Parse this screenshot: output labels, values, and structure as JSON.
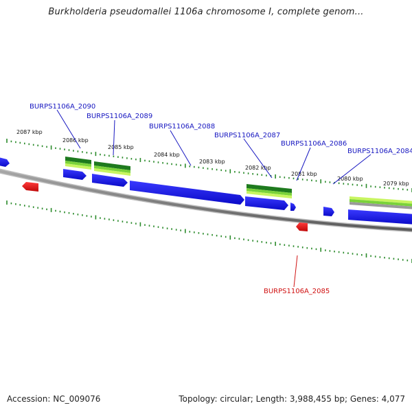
{
  "title": "Burkholderia pseudomallei 1106a chromosome I, complete genom...",
  "footer": {
    "accession": "Accession: NC_009076",
    "summary": "Topology: circular; Length: 3,988,455 bp; Genes: 4,077"
  },
  "colors": {
    "forward_gene": "#1010e0",
    "reverse_gene": "#e01010",
    "backbone": "#808080",
    "tick": "#2a8a2a",
    "feature_dark": "#1e7a1e",
    "feature_light": "#b8f040",
    "label_forward": "#1515c0",
    "label_reverse": "#d01010"
  },
  "ruler_labels": [
    "2087 kbp",
    "2086 kbp",
    "2085 kbp",
    "2084 kbp",
    "2083 kbp",
    "2082 kbp",
    "2081 kbp",
    "2080 kbp",
    "2079 kbp"
  ],
  "gene_labels_forward": [
    "BURPS1106A_2090",
    "BURPS1106A_2089",
    "BURPS1106A_2088",
    "BURPS1106A_2087",
    "BURPS1106A_2086",
    "BURPS1106A_2084"
  ],
  "gene_labels_reverse": [
    "BURPS1106A_2085"
  ]
}
